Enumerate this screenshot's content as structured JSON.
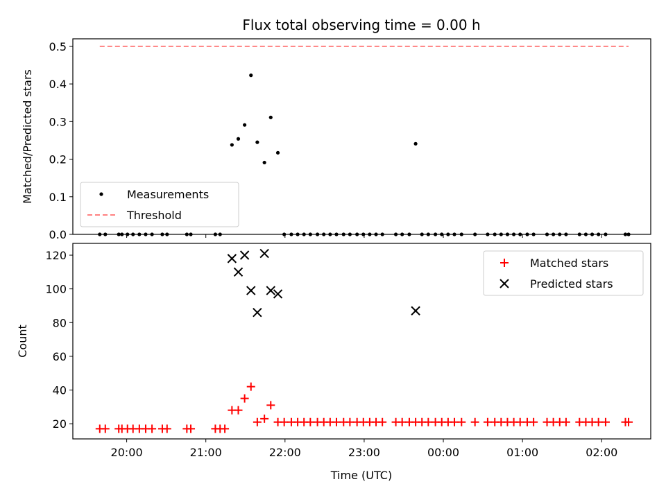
{
  "chart_data": [
    {
      "type": "scatter",
      "title": "Flux total observing time = 0.00 h",
      "xlabel": "",
      "ylabel": "Matched/Predicted stars",
      "ylim": [
        0,
        0.52
      ],
      "yticks": [
        0.0,
        0.1,
        0.2,
        0.3,
        0.4,
        0.5
      ],
      "ytick_labels": [
        "0.0",
        "0.1",
        "0.2",
        "0.3",
        "0.4",
        "0.5"
      ],
      "xlim_hours": [
        19.32,
        26.62
      ],
      "xticks_hours": [
        20,
        21,
        22,
        23,
        24,
        25,
        26
      ],
      "xtick_labels": [
        "20:00",
        "21:00",
        "22:00",
        "23:00",
        "00:00",
        "01:00",
        "02:00"
      ],
      "show_xtick_labels": false,
      "legend_position": "lower-left",
      "series": [
        {
          "name": "Measurements",
          "style": "point",
          "color": "#000000",
          "points": [
            [
              19.66,
              0
            ],
            [
              19.73,
              0
            ],
            [
              19.9,
              0
            ],
            [
              19.94,
              0
            ],
            [
              20.01,
              0
            ],
            [
              20.08,
              0
            ],
            [
              20.16,
              0
            ],
            [
              20.24,
              0
            ],
            [
              20.32,
              0
            ],
            [
              20.45,
              0
            ],
            [
              20.51,
              0
            ],
            [
              20.76,
              0
            ],
            [
              20.81,
              0
            ],
            [
              21.12,
              0
            ],
            [
              21.18,
              0
            ],
            [
              21.33,
              0.238
            ],
            [
              21.41,
              0.254
            ],
            [
              21.49,
              0.291
            ],
            [
              21.57,
              0.423
            ],
            [
              21.65,
              0.245
            ],
            [
              21.74,
              0.191
            ],
            [
              21.82,
              0.311
            ],
            [
              21.91,
              0.217
            ],
            [
              21.99,
              0
            ],
            [
              22.08,
              0
            ],
            [
              22.16,
              0
            ],
            [
              22.24,
              0
            ],
            [
              22.32,
              0
            ],
            [
              22.41,
              0
            ],
            [
              22.49,
              0
            ],
            [
              22.57,
              0
            ],
            [
              22.65,
              0
            ],
            [
              22.74,
              0
            ],
            [
              22.82,
              0
            ],
            [
              22.91,
              0
            ],
            [
              22.99,
              0
            ],
            [
              23.07,
              0
            ],
            [
              23.15,
              0
            ],
            [
              23.23,
              0
            ],
            [
              23.4,
              0
            ],
            [
              23.48,
              0
            ],
            [
              23.57,
              0
            ],
            [
              23.65,
              0.241
            ],
            [
              23.73,
              0
            ],
            [
              23.81,
              0
            ],
            [
              23.9,
              0
            ],
            [
              23.98,
              0
            ],
            [
              24.06,
              0
            ],
            [
              24.14,
              0
            ],
            [
              24.23,
              0
            ],
            [
              24.4,
              0
            ],
            [
              24.56,
              0
            ],
            [
              24.65,
              0
            ],
            [
              24.73,
              0
            ],
            [
              24.81,
              0
            ],
            [
              24.89,
              0
            ],
            [
              24.97,
              0
            ],
            [
              25.06,
              0
            ],
            [
              25.14,
              0
            ],
            [
              25.31,
              0
            ],
            [
              25.39,
              0
            ],
            [
              25.47,
              0
            ],
            [
              25.55,
              0
            ],
            [
              25.72,
              0
            ],
            [
              25.8,
              0
            ],
            [
              25.88,
              0
            ],
            [
              25.96,
              0
            ],
            [
              26.05,
              0
            ],
            [
              26.3,
              0
            ],
            [
              26.34,
              0
            ]
          ]
        },
        {
          "name": "Threshold",
          "style": "dashed-line",
          "color": "#ff8080",
          "points": [
            [
              19.66,
              0.5
            ],
            [
              26.34,
              0.5
            ]
          ]
        }
      ]
    },
    {
      "type": "scatter",
      "title": "",
      "xlabel": "Time (UTC)",
      "ylabel": "Count",
      "ylim": [
        11,
        127
      ],
      "yticks": [
        20,
        40,
        60,
        80,
        100,
        120
      ],
      "ytick_labels": [
        "20",
        "40",
        "60",
        "80",
        "100",
        "120"
      ],
      "xlim_hours": [
        19.32,
        26.62
      ],
      "xticks_hours": [
        20,
        21,
        22,
        23,
        24,
        25,
        26
      ],
      "xtick_labels": [
        "20:00",
        "21:00",
        "22:00",
        "23:00",
        "00:00",
        "01:00",
        "02:00"
      ],
      "show_xtick_labels": true,
      "legend_position": "upper-right",
      "series": [
        {
          "name": "Matched stars",
          "style": "plus",
          "color": "#ff0000",
          "points": [
            [
              19.66,
              17
            ],
            [
              19.73,
              17
            ],
            [
              19.9,
              17
            ],
            [
              19.94,
              17
            ],
            [
              20.01,
              17
            ],
            [
              20.08,
              17
            ],
            [
              20.16,
              17
            ],
            [
              20.24,
              17
            ],
            [
              20.32,
              17
            ],
            [
              20.45,
              17
            ],
            [
              20.51,
              17
            ],
            [
              20.76,
              17
            ],
            [
              20.81,
              17
            ],
            [
              21.12,
              17
            ],
            [
              21.18,
              17
            ],
            [
              21.24,
              17
            ],
            [
              21.33,
              28
            ],
            [
              21.41,
              28
            ],
            [
              21.49,
              35
            ],
            [
              21.57,
              42
            ],
            [
              21.65,
              21
            ],
            [
              21.74,
              23
            ],
            [
              21.82,
              31
            ],
            [
              21.91,
              21
            ],
            [
              21.99,
              21
            ],
            [
              22.08,
              21
            ],
            [
              22.16,
              21
            ],
            [
              22.24,
              21
            ],
            [
              22.32,
              21
            ],
            [
              22.41,
              21
            ],
            [
              22.49,
              21
            ],
            [
              22.57,
              21
            ],
            [
              22.65,
              21
            ],
            [
              22.74,
              21
            ],
            [
              22.82,
              21
            ],
            [
              22.91,
              21
            ],
            [
              22.99,
              21
            ],
            [
              23.07,
              21
            ],
            [
              23.15,
              21
            ],
            [
              23.23,
              21
            ],
            [
              23.4,
              21
            ],
            [
              23.48,
              21
            ],
            [
              23.57,
              21
            ],
            [
              23.65,
              21
            ],
            [
              23.73,
              21
            ],
            [
              23.81,
              21
            ],
            [
              23.9,
              21
            ],
            [
              23.98,
              21
            ],
            [
              24.06,
              21
            ],
            [
              24.14,
              21
            ],
            [
              24.23,
              21
            ],
            [
              24.4,
              21
            ],
            [
              24.56,
              21
            ],
            [
              24.65,
              21
            ],
            [
              24.73,
              21
            ],
            [
              24.81,
              21
            ],
            [
              24.89,
              21
            ],
            [
              24.97,
              21
            ],
            [
              25.06,
              21
            ],
            [
              25.14,
              21
            ],
            [
              25.31,
              21
            ],
            [
              25.39,
              21
            ],
            [
              25.47,
              21
            ],
            [
              25.55,
              21
            ],
            [
              25.72,
              21
            ],
            [
              25.8,
              21
            ],
            [
              25.88,
              21
            ],
            [
              25.96,
              21
            ],
            [
              26.05,
              21
            ],
            [
              26.3,
              21
            ],
            [
              26.34,
              21
            ]
          ]
        },
        {
          "name": "Predicted stars",
          "style": "x",
          "color": "#000000",
          "points": [
            [
              21.33,
              118
            ],
            [
              21.41,
              110
            ],
            [
              21.49,
              120
            ],
            [
              21.57,
              99
            ],
            [
              21.65,
              86
            ],
            [
              21.74,
              121
            ],
            [
              21.82,
              99
            ],
            [
              21.91,
              97
            ],
            [
              23.65,
              87
            ]
          ]
        }
      ]
    }
  ]
}
